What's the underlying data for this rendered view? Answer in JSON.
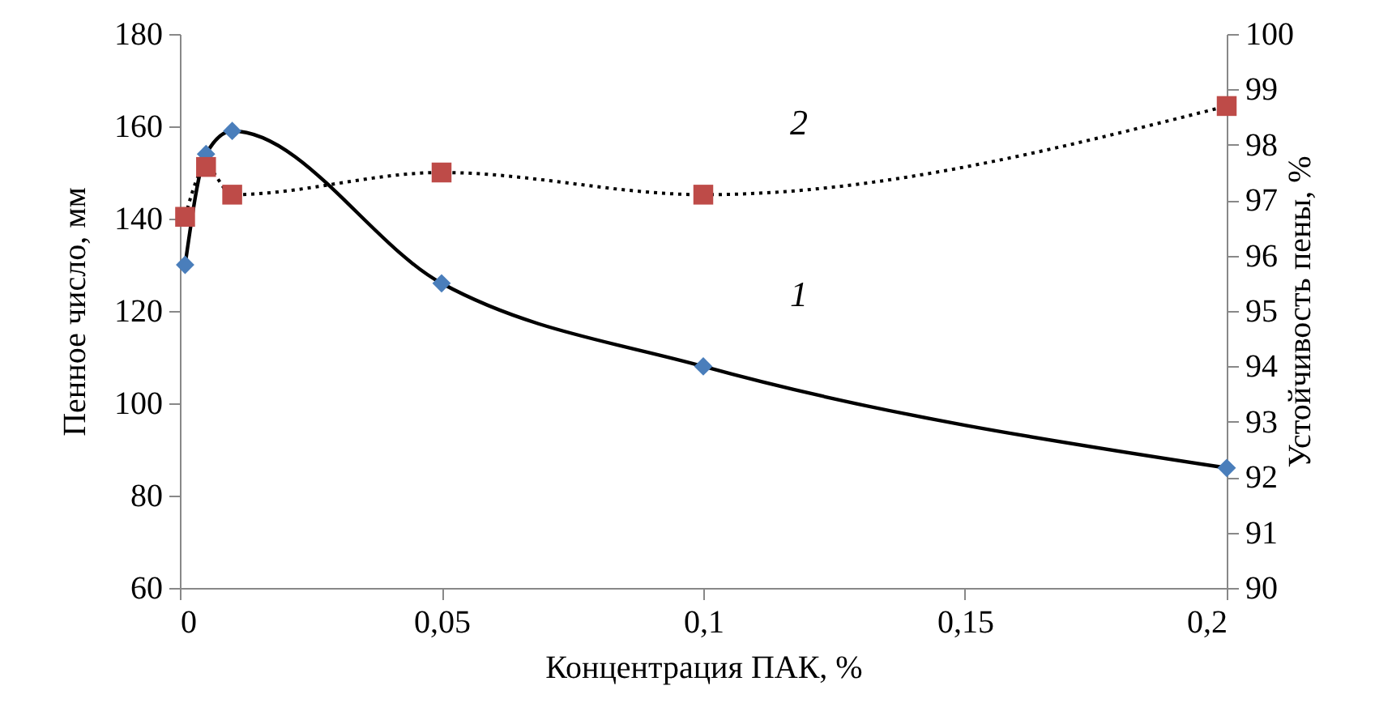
{
  "chart_data": {
    "type": "line",
    "xlabel": "Концентрация ПАК, %",
    "ylabel": "Пенное число, мм",
    "y2label": "Устойчивость пены, %",
    "x": [
      0.001,
      0.005,
      0.01,
      0.05,
      0.1,
      0.2
    ],
    "series": [
      {
        "name": "1",
        "color": "#4a7ebb",
        "marker": "diamond",
        "line_style": "solid",
        "values": [
          130,
          154,
          159,
          126,
          108,
          86
        ]
      },
      {
        "name": "2",
        "color": "#be4b48",
        "marker": "square",
        "line_style": "dotted",
        "axis": "y2",
        "values": [
          96.7,
          97.6,
          97.1,
          97.5,
          97.1,
          98.7
        ]
      }
    ],
    "legend": false,
    "xlim": [
      0,
      0.2
    ],
    "xticks": [
      0,
      {
        "value": 0.05,
        "label": "0,05"
      },
      {
        "value": 0.1,
        "label": "0,1"
      },
      {
        "value": 0.15,
        "label": "0,15"
      },
      {
        "value": 0.2,
        "label": "0,2"
      }
    ],
    "ylim": [
      60,
      180
    ],
    "yticks": [
      60,
      80,
      100,
      120,
      140,
      160,
      180
    ],
    "y2lim": [
      90,
      100
    ],
    "y2ticks": [
      90,
      91,
      92,
      93,
      94,
      95,
      96,
      97,
      98,
      99,
      100
    ],
    "grid": false
  }
}
